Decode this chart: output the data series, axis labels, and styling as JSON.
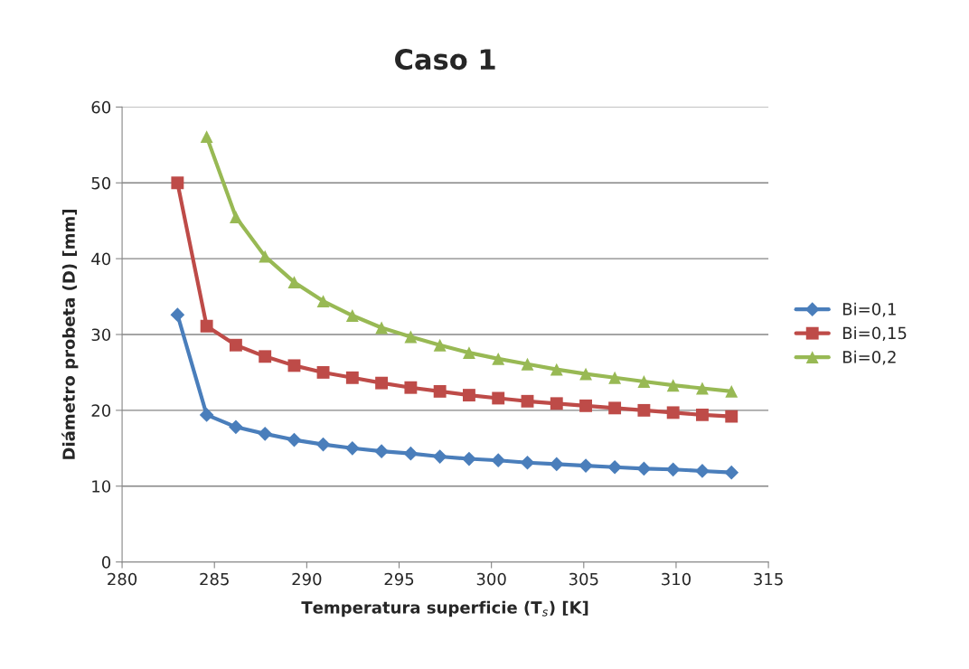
{
  "chart_data": {
    "type": "line",
    "title": "Caso 1",
    "xlabel": "Temperatura superficie (T$_{s}$) [K]",
    "ylabel": "Diámetro probeta (D) [mm]",
    "xlim": [
      280,
      315
    ],
    "xticks": [
      280,
      285,
      290,
      295,
      300,
      305,
      310,
      315
    ],
    "ylim": [
      0,
      60
    ],
    "yticks": [
      0,
      10,
      20,
      30,
      40,
      50,
      60
    ],
    "grid": "y",
    "legend": "right",
    "series": [
      {
        "name": "Bi=0,1",
        "color": "#4a7ebb",
        "marker": "diamond",
        "x": [
          283,
          284.58,
          286.16,
          287.74,
          289.32,
          290.89,
          292.47,
          294.05,
          295.63,
          297.21,
          298.79,
          300.37,
          301.95,
          303.53,
          305.11,
          306.68,
          308.26,
          309.84,
          311.42,
          313
        ],
        "values": [
          32.6,
          19.4,
          17.8,
          16.9,
          16.1,
          15.5,
          15.0,
          14.6,
          14.3,
          13.9,
          13.6,
          13.4,
          13.1,
          12.9,
          12.7,
          12.5,
          12.3,
          12.2,
          12.0,
          11.8
        ]
      },
      {
        "name": "Bi=0,15",
        "color": "#be4b48",
        "marker": "square",
        "x": [
          283,
          284.58,
          286.16,
          287.74,
          289.32,
          290.89,
          292.47,
          294.05,
          295.63,
          297.21,
          298.79,
          300.37,
          301.95,
          303.53,
          305.11,
          306.68,
          308.26,
          309.84,
          311.42,
          313
        ],
        "values": [
          50.0,
          31.1,
          28.6,
          27.1,
          25.9,
          25.0,
          24.3,
          23.6,
          23.0,
          22.5,
          22.0,
          21.6,
          21.2,
          20.9,
          20.6,
          20.3,
          20.0,
          19.7,
          19.4,
          19.2
        ]
      },
      {
        "name": "Bi=0,2",
        "color": "#98b954",
        "marker": "triangle",
        "x": [
          284.58,
          286.16,
          287.74,
          289.32,
          290.89,
          292.47,
          294.05,
          295.63,
          297.21,
          298.79,
          300.37,
          301.95,
          303.53,
          305.11,
          306.68,
          308.26,
          309.84,
          311.42,
          313
        ],
        "values": [
          56.1,
          45.5,
          40.3,
          36.9,
          34.4,
          32.5,
          30.9,
          29.7,
          28.6,
          27.6,
          26.8,
          26.1,
          25.4,
          24.8,
          24.3,
          23.8,
          23.3,
          22.9,
          22.5
        ]
      }
    ]
  }
}
